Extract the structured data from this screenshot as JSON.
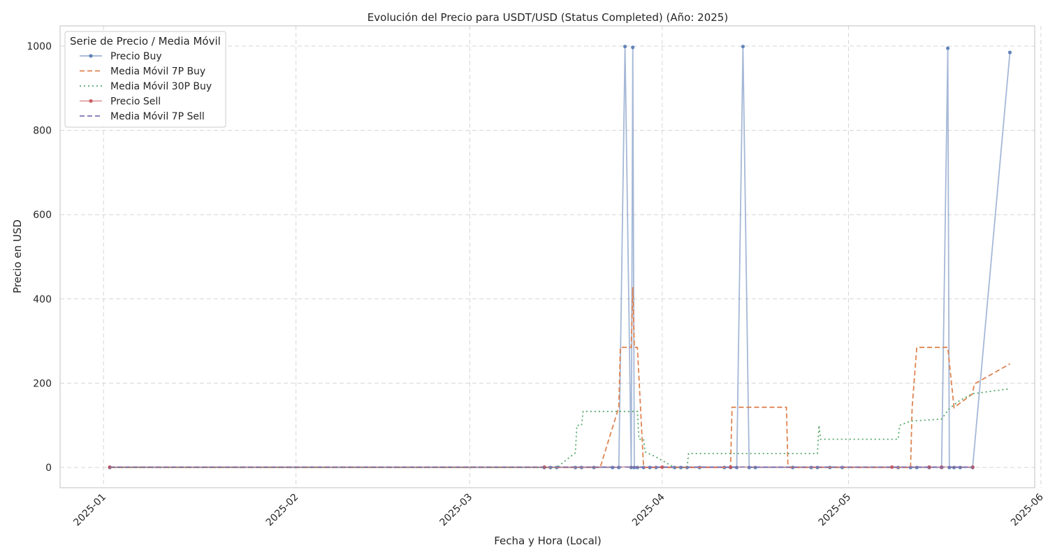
{
  "chart_data": {
    "type": "line",
    "title": "Evolución del Precio para USDT/USD (Status Completed) (Año: 2025)",
    "xlabel": "Fecha y Hora (Local)",
    "ylabel": "Precio en USD",
    "xlim": [
      "2024-12-25",
      "2025-05-31"
    ],
    "ylim": [
      -48,
      1048
    ],
    "x_ticks": [
      "2025-01-01",
      "2025-02-01",
      "2025-03-01",
      "2025-04-01",
      "2025-05-01",
      "2025-06-01"
    ],
    "x_tick_labels": [
      "2025-01",
      "2025-02",
      "2025-03",
      "2025-04",
      "2025-05",
      "2025-06"
    ],
    "y_ticks": [
      0,
      200,
      400,
      600,
      800,
      1000
    ],
    "grid": true,
    "legend": {
      "title": "Serie de Precio / Media Móvil",
      "placement": "top-left"
    },
    "series": [
      {
        "name": "Precio Buy",
        "color": "#4c72b0",
        "style": "solid-marker",
        "points": [
          [
            "2025-01-02",
            0
          ],
          [
            "2025-03-13",
            0
          ],
          [
            "2025-03-14",
            0
          ],
          [
            "2025-03-15",
            0
          ],
          [
            "2025-03-18",
            0
          ],
          [
            "2025-03-19",
            0
          ],
          [
            "2025-03-21",
            0
          ],
          [
            "2025-03-24",
            0
          ],
          [
            "2025-03-25",
            0
          ],
          [
            "2025-03-26",
            999
          ],
          [
            "2025-03-27",
            0
          ],
          [
            "2025-03-27 06:00",
            997
          ],
          [
            "2025-03-27 12:00",
            0
          ],
          [
            "2025-03-28",
            0
          ],
          [
            "2025-03-29",
            0
          ],
          [
            "2025-03-30",
            0
          ],
          [
            "2025-03-31",
            0
          ],
          [
            "2025-04-03",
            0
          ],
          [
            "2025-04-04",
            0
          ],
          [
            "2025-04-05",
            0
          ],
          [
            "2025-04-07",
            0
          ],
          [
            "2025-04-11",
            0
          ],
          [
            "2025-04-12",
            0
          ],
          [
            "2025-04-13",
            0
          ],
          [
            "2025-04-14",
            999
          ],
          [
            "2025-04-15",
            0
          ],
          [
            "2025-04-16",
            0
          ],
          [
            "2025-04-22",
            0
          ],
          [
            "2025-04-25",
            0
          ],
          [
            "2025-04-26",
            0
          ],
          [
            "2025-04-28",
            0
          ],
          [
            "2025-04-30",
            0
          ],
          [
            "2025-05-09",
            0
          ],
          [
            "2025-05-11",
            0
          ],
          [
            "2025-05-12",
            0
          ],
          [
            "2025-05-14",
            0
          ],
          [
            "2025-05-16",
            0
          ],
          [
            "2025-05-17",
            995
          ],
          [
            "2025-05-17 06:00",
            0
          ],
          [
            "2025-05-18",
            0
          ],
          [
            "2025-05-19",
            0
          ],
          [
            "2025-05-21",
            0
          ],
          [
            "2025-05-27",
            985
          ]
        ]
      },
      {
        "name": "Media Móvil 7P Buy",
        "color": "#dd8452",
        "style": "dashed",
        "points": [
          [
            "2025-01-02",
            0
          ],
          [
            "2025-03-22",
            0
          ],
          [
            "2025-03-25",
            143
          ],
          [
            "2025-03-25 06:00",
            285
          ],
          [
            "2025-03-27",
            285
          ],
          [
            "2025-03-27 06:00",
            428
          ],
          [
            "2025-03-27 12:00",
            285
          ],
          [
            "2025-03-28",
            285
          ],
          [
            "2025-03-29",
            0
          ],
          [
            "2025-04-12",
            0
          ],
          [
            "2025-04-12 06:00",
            143
          ],
          [
            "2025-04-21",
            143
          ],
          [
            "2025-04-21 06:00",
            0
          ],
          [
            "2025-05-11",
            0
          ],
          [
            "2025-05-11 06:00",
            142
          ],
          [
            "2025-05-12",
            285
          ],
          [
            "2025-05-17",
            285
          ],
          [
            "2025-05-18",
            142
          ],
          [
            "2025-05-21",
            175
          ],
          [
            "2025-05-21 06:00",
            198
          ],
          [
            "2025-05-27",
            246
          ]
        ]
      },
      {
        "name": "Media Móvil 30P Buy",
        "color": "#55a868",
        "style": "dotted",
        "points": [
          [
            "2025-01-02",
            0
          ],
          [
            "2025-03-15",
            0
          ],
          [
            "2025-03-18",
            35
          ],
          [
            "2025-03-18 06:00",
            100
          ],
          [
            "2025-03-19",
            100
          ],
          [
            "2025-03-19 06:00",
            133
          ],
          [
            "2025-03-28",
            133
          ],
          [
            "2025-03-28 06:00",
            67
          ],
          [
            "2025-03-29",
            67
          ],
          [
            "2025-03-29 06:00",
            37
          ],
          [
            "2025-03-31",
            25
          ],
          [
            "2025-04-03",
            0
          ],
          [
            "2025-04-05",
            0
          ],
          [
            "2025-04-05 06:00",
            33
          ],
          [
            "2025-04-26",
            33
          ],
          [
            "2025-04-26 06:00",
            100
          ],
          [
            "2025-04-26 12:00",
            67
          ],
          [
            "2025-05-09",
            67
          ],
          [
            "2025-05-09 06:00",
            100
          ],
          [
            "2025-05-11",
            110
          ],
          [
            "2025-05-16",
            115
          ],
          [
            "2025-05-17 06:00",
            140
          ],
          [
            "2025-05-19",
            160
          ],
          [
            "2025-05-21",
            175
          ],
          [
            "2025-05-27",
            187
          ]
        ]
      },
      {
        "name": "Precio Sell",
        "color": "#c44e52",
        "style": "solid-marker",
        "points": [
          [
            "2025-01-02",
            1
          ],
          [
            "2025-03-13",
            1
          ],
          [
            "2025-04-01",
            1
          ],
          [
            "2025-04-12",
            1
          ],
          [
            "2025-05-08",
            1
          ],
          [
            "2025-05-14",
            1
          ],
          [
            "2025-05-16",
            1
          ],
          [
            "2025-05-21",
            1
          ]
        ]
      },
      {
        "name": "Media Móvil 7P Sell",
        "color": "#8172b3",
        "style": "dashed",
        "points": [
          [
            "2025-01-02",
            1
          ],
          [
            "2025-05-21",
            1
          ]
        ]
      }
    ]
  }
}
